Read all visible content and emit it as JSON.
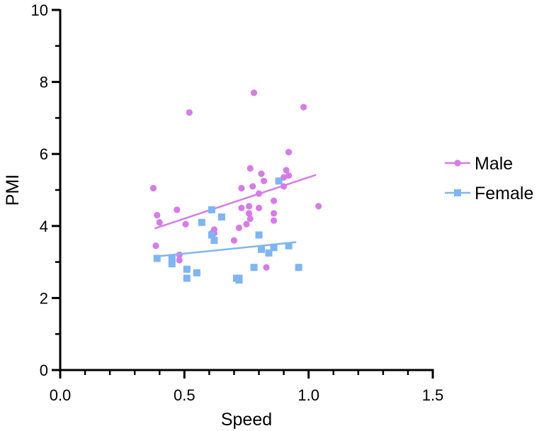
{
  "chart_data": {
    "type": "scatter",
    "xlabel": "Speed",
    "ylabel": "PMI",
    "xlim": [
      0,
      1.5
    ],
    "ylim": [
      0,
      10
    ],
    "x_ticks": [
      {
        "value": 0.0,
        "label": "0.0"
      },
      {
        "value": 0.5,
        "label": "0.5"
      },
      {
        "value": 1.0,
        "label": "1.0"
      },
      {
        "value": 1.5,
        "label": "1.5"
      }
    ],
    "y_ticks": [
      {
        "value": 0,
        "label": "0"
      },
      {
        "value": 2,
        "label": "2"
      },
      {
        "value": 4,
        "label": "4"
      },
      {
        "value": 6,
        "label": "6"
      },
      {
        "value": 8,
        "label": "8"
      },
      {
        "value": 10,
        "label": "10"
      }
    ],
    "grid": false,
    "legend_position": "right",
    "series": [
      {
        "name": "Male",
        "color": "#d67ce6",
        "marker": "circle",
        "points": [
          [
            0.375,
            5.05
          ],
          [
            0.385,
            3.45
          ],
          [
            0.39,
            4.3
          ],
          [
            0.4,
            4.1
          ],
          [
            0.47,
            4.45
          ],
          [
            0.48,
            3.2
          ],
          [
            0.48,
            3.05
          ],
          [
            0.505,
            4.05
          ],
          [
            0.52,
            7.15
          ],
          [
            0.61,
            3.8
          ],
          [
            0.62,
            3.9
          ],
          [
            0.62,
            3.8
          ],
          [
            0.7,
            3.6
          ],
          [
            0.72,
            3.95
          ],
          [
            0.73,
            5.05
          ],
          [
            0.73,
            4.5
          ],
          [
            0.75,
            4.05
          ],
          [
            0.76,
            4.55
          ],
          [
            0.76,
            4.35
          ],
          [
            0.765,
            5.6
          ],
          [
            0.765,
            4.2
          ],
          [
            0.775,
            5.1
          ],
          [
            0.78,
            7.7
          ],
          [
            0.8,
            4.9
          ],
          [
            0.8,
            4.5
          ],
          [
            0.81,
            5.45
          ],
          [
            0.82,
            5.25
          ],
          [
            0.83,
            2.85
          ],
          [
            0.86,
            4.7
          ],
          [
            0.86,
            4.35
          ],
          [
            0.86,
            4.15
          ],
          [
            0.9,
            5.35
          ],
          [
            0.9,
            5.1
          ],
          [
            0.91,
            5.55
          ],
          [
            0.92,
            5.4
          ],
          [
            0.92,
            6.05
          ],
          [
            0.98,
            7.3
          ],
          [
            1.04,
            4.55
          ]
        ],
        "fit_line": {
          "x": [
            0.38,
            1.03
          ],
          "y": [
            3.93,
            5.42
          ]
        }
      },
      {
        "name": "Female",
        "color": "#7fb5f2",
        "marker": "square",
        "points": [
          [
            0.39,
            3.1
          ],
          [
            0.45,
            3.1
          ],
          [
            0.45,
            2.95
          ],
          [
            0.51,
            2.8
          ],
          [
            0.51,
            2.55
          ],
          [
            0.55,
            2.7
          ],
          [
            0.57,
            4.1
          ],
          [
            0.61,
            4.45
          ],
          [
            0.61,
            3.75
          ],
          [
            0.62,
            3.6
          ],
          [
            0.65,
            4.25
          ],
          [
            0.71,
            2.55
          ],
          [
            0.72,
            2.5
          ],
          [
            0.72,
            2.55
          ],
          [
            0.78,
            2.85
          ],
          [
            0.8,
            3.75
          ],
          [
            0.81,
            3.35
          ],
          [
            0.84,
            3.25
          ],
          [
            0.86,
            3.4
          ],
          [
            0.88,
            5.25
          ],
          [
            0.92,
            3.45
          ],
          [
            0.96,
            2.85
          ]
        ],
        "fit_line": {
          "x": [
            0.38,
            0.95
          ],
          "y": [
            3.15,
            3.55
          ]
        }
      }
    ]
  }
}
